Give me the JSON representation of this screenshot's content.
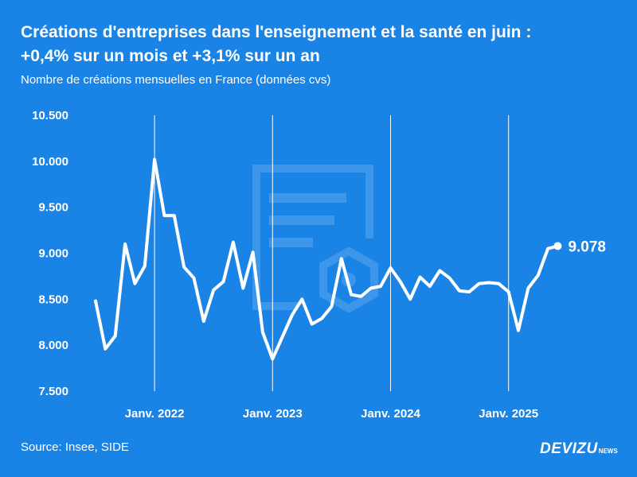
{
  "header": {
    "title_line1": "Créations d'entreprises dans l'enseignement et la santé en juin :",
    "title_line2": "+0,4% sur un mois et +3,1% sur un an",
    "subtitle": "Nombre de créations mensuelles en France (données cvs)"
  },
  "footer": {
    "source": "Source: Insee, SIDE",
    "brand": "DEVIZU",
    "brand_sub": "NEWS"
  },
  "colors": {
    "background": "#1a84e6",
    "line": "#ffffff",
    "gridline": "#ffffff",
    "watermark": "#5aa5ee"
  },
  "chart_data": {
    "type": "line",
    "title": "Créations d'entreprises dans l'enseignement et la santé en juin : +0,4% sur un mois et +3,1% sur un an",
    "subtitle": "Nombre de créations mensuelles en France (données cvs)",
    "xlabel": "",
    "ylabel": "",
    "ylim": [
      7500,
      10500
    ],
    "yticks": [
      7500,
      8000,
      8500,
      9000,
      9500,
      10000,
      10500
    ],
    "ytick_labels": [
      "7.500",
      "8.000",
      "8.500",
      "9.000",
      "9.500",
      "10.000",
      "10.500"
    ],
    "xticks": [
      {
        "date": "2022-01",
        "label": "Janv. 2022"
      },
      {
        "date": "2023-01",
        "label": "Janv. 2023"
      },
      {
        "date": "2024-01",
        "label": "Janv. 2024"
      },
      {
        "date": "2025-01",
        "label": "Janv. 2025"
      }
    ],
    "grid": "vertical lines at January",
    "legend": "none",
    "last_value_label": "9.078",
    "series": [
      {
        "x": [
          "2021-07",
          "2021-08",
          "2021-09",
          "2021-10",
          "2021-11",
          "2021-12",
          "2022-01",
          "2022-02",
          "2022-03",
          "2022-04",
          "2022-05",
          "2022-06",
          "2022-07",
          "2022-08",
          "2022-09",
          "2022-10",
          "2022-11",
          "2022-12",
          "2023-01",
          "2023-02",
          "2023-03",
          "2023-04",
          "2023-05",
          "2023-06",
          "2023-07",
          "2023-08",
          "2023-09",
          "2023-10",
          "2023-11",
          "2023-12",
          "2024-01",
          "2024-02",
          "2024-03",
          "2024-04",
          "2024-05",
          "2024-06",
          "2024-07",
          "2024-08",
          "2024-09",
          "2024-10",
          "2024-11",
          "2024-12",
          "2025-01",
          "2025-02",
          "2025-03",
          "2025-04",
          "2025-05",
          "2025-06"
        ],
        "values": [
          8480,
          7960,
          8100,
          9100,
          8670,
          8860,
          10020,
          9410,
          9410,
          8850,
          8730,
          8260,
          8600,
          8690,
          9120,
          8620,
          9010,
          8140,
          7850,
          8090,
          8330,
          8500,
          8230,
          8290,
          8420,
          8940,
          8550,
          8530,
          8620,
          8640,
          8840,
          8690,
          8500,
          8740,
          8640,
          8810,
          8730,
          8590,
          8580,
          8670,
          8680,
          8670,
          8580,
          8160,
          8620,
          8760,
          9050,
          9078
        ]
      }
    ]
  }
}
